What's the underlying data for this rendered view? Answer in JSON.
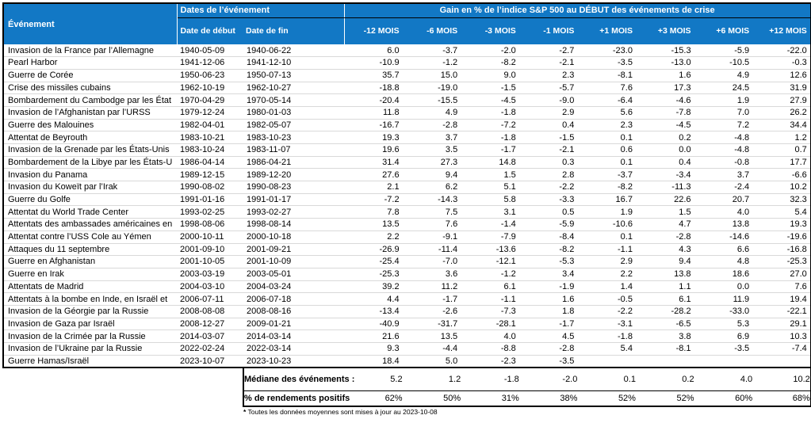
{
  "header": {
    "event_col": "Événement",
    "dates_group": "Dates de l’événement",
    "gain_group": "Gain en % de l’indice S&P 500 au DÉBUT des événements de crise",
    "start_col": "Date de début",
    "end_col": "Date de fin",
    "month_cols": [
      "-12 MOIS",
      "-6 MOIS",
      "-3 MOIS",
      "-1 MOIS",
      "+1 MOIS",
      "+3 MOIS",
      "+6 MOIS",
      "+12 MOIS"
    ]
  },
  "footer": {
    "median_label": "Médiane des événements :",
    "positive_label": "% de rendements positifs",
    "footnote_star": "*",
    "footnote_text": " Toutes les données moyennes sont mises à jour au 2023-10-08"
  },
  "colors": {
    "header_bg": "#1278c5",
    "header_text": "#ffffff",
    "row_divider": "#d9d9d9",
    "border": "#000000"
  },
  "chart_data": {
    "type": "table",
    "title": "Gain en % de l’indice S&P 500 au DÉBUT des événements de crise",
    "columns": [
      "Événement",
      "Date de début",
      "Date de fin",
      "-12 MOIS",
      "-6 MOIS",
      "-3 MOIS",
      "-1 MOIS",
      "+1 MOIS",
      "+3 MOIS",
      "+6 MOIS",
      "+12 MOIS"
    ],
    "rows": [
      {
        "event": "Invasion de la France par l’Allemagne",
        "start": "1940-05-09",
        "end": "1940-06-22",
        "values": [
          "6.0",
          "-3.7",
          "-2.0",
          "-2.7",
          "-23.0",
          "-15.3",
          "-5.9",
          "-22.0"
        ]
      },
      {
        "event": "Pearl Harbor",
        "start": "1941-12-06",
        "end": "1941-12-10",
        "values": [
          "-10.9",
          "-1.2",
          "-8.2",
          "-2.1",
          "-3.5",
          "-13.0",
          "-10.5",
          "-0.3"
        ]
      },
      {
        "event": "Guerre de Corée",
        "start": "1950-06-23",
        "end": "1950-07-13",
        "values": [
          "35.7",
          "15.0",
          "9.0",
          "2.3",
          "-8.1",
          "1.6",
          "4.9",
          "12.6"
        ]
      },
      {
        "event": "Crise des missiles cubains",
        "start": "1962-10-19",
        "end": "1962-10-27",
        "values": [
          "-18.8",
          "-19.0",
          "-1.5",
          "-5.7",
          "7.6",
          "17.3",
          "24.5",
          "31.9"
        ]
      },
      {
        "event": "Bombardement du Cambodge par les État",
        "start": "1970-04-29",
        "end": "1970-05-14",
        "values": [
          "-20.4",
          "-15.5",
          "-4.5",
          "-9.0",
          "-6.4",
          "-4.6",
          "1.9",
          "27.9"
        ]
      },
      {
        "event": "Invasion de l’Afghanistan par l’URSS",
        "start": "1979-12-24",
        "end": "1980-01-03",
        "values": [
          "11.8",
          "4.9",
          "-1.8",
          "2.9",
          "5.6",
          "-7.8",
          "7.0",
          "26.2"
        ]
      },
      {
        "event": "Guerre des Malouines",
        "start": "1982-04-01",
        "end": "1982-05-07",
        "values": [
          "-16.7",
          "-2.8",
          "-7.2",
          "0.4",
          "2.3",
          "-4.5",
          "7.2",
          "34.4"
        ]
      },
      {
        "event": "Attentat de Beyrouth",
        "start": "1983-10-21",
        "end": "1983-10-23",
        "values": [
          "19.3",
          "3.7",
          "-1.8",
          "-1.5",
          "0.1",
          "0.2",
          "-4.8",
          "1.2"
        ]
      },
      {
        "event": "Invasion de la Grenade par les États-Unis",
        "start": "1983-10-24",
        "end": "1983-11-07",
        "values": [
          "19.6",
          "3.5",
          "-1.7",
          "-2.1",
          "0.6",
          "0.0",
          "-4.8",
          "0.7"
        ]
      },
      {
        "event": "Bombardement de la Libye par les États-U",
        "start": "1986-04-14",
        "end": "1986-04-21",
        "values": [
          "31.4",
          "27.3",
          "14.8",
          "0.3",
          "0.1",
          "0.4",
          "-0.8",
          "17.7"
        ]
      },
      {
        "event": "Invasion du Panama",
        "start": "1989-12-15",
        "end": "1989-12-20",
        "values": [
          "27.6",
          "9.4",
          "1.5",
          "2.8",
          "-3.7",
          "-3.4",
          "3.7",
          "-6.6"
        ]
      },
      {
        "event": "Invasion du Koweït par l’Irak",
        "start": "1990-08-02",
        "end": "1990-08-23",
        "values": [
          "2.1",
          "6.2",
          "5.1",
          "-2.2",
          "-8.2",
          "-11.3",
          "-2.4",
          "10.2"
        ]
      },
      {
        "event": "Guerre du Golfe",
        "start": "1991-01-16",
        "end": "1991-01-17",
        "values": [
          "-7.2",
          "-14.3",
          "5.8",
          "-3.3",
          "16.7",
          "22.6",
          "20.7",
          "32.3"
        ]
      },
      {
        "event": "Attentat du World Trade Center",
        "start": "1993-02-25",
        "end": "1993-02-27",
        "values": [
          "7.8",
          "7.5",
          "3.1",
          "0.5",
          "1.9",
          "1.5",
          "4.0",
          "5.4"
        ]
      },
      {
        "event": "Attentats des ambassades américaines en",
        "start": "1998-08-06",
        "end": "1998-08-14",
        "values": [
          "13.5",
          "7.6",
          "-1.4",
          "-5.9",
          "-10.6",
          "4.7",
          "13.8",
          "19.3"
        ]
      },
      {
        "event": "Attentat contre l’USS Cole au Yémen",
        "start": "2000-10-11",
        "end": "2000-10-18",
        "values": [
          "2.2",
          "-9.1",
          "-7.9",
          "-8.4",
          "0.1",
          "-2.8",
          "-14.6",
          "-19.6"
        ]
      },
      {
        "event": "Attaques du 11 septembre",
        "start": "2001-09-10",
        "end": "2001-09-21",
        "values": [
          "-26.9",
          "-11.4",
          "-13.6",
          "-8.2",
          "-1.1",
          "4.3",
          "6.6",
          "-16.8"
        ]
      },
      {
        "event": "Guerre en Afghanistan",
        "start": "2001-10-05",
        "end": "2001-10-09",
        "values": [
          "-25.4",
          "-7.0",
          "-12.1",
          "-5.3",
          "2.9",
          "9.4",
          "4.8",
          "-25.3"
        ]
      },
      {
        "event": "Guerre en Irak",
        "start": "2003-03-19",
        "end": "2003-05-01",
        "values": [
          "-25.3",
          "3.6",
          "-1.2",
          "3.4",
          "2.2",
          "13.8",
          "18.6",
          "27.0"
        ]
      },
      {
        "event": "Attentats de Madrid",
        "start": "2004-03-10",
        "end": "2004-03-24",
        "values": [
          "39.2",
          "11.2",
          "6.1",
          "-1.9",
          "1.4",
          "1.1",
          "0.0",
          "7.6"
        ]
      },
      {
        "event": "Attentats à la bombe en Inde, en Israël et",
        "start": "2006-07-11",
        "end": "2006-07-18",
        "values": [
          "4.4",
          "-1.7",
          "-1.1",
          "1.6",
          "-0.5",
          "6.1",
          "11.9",
          "19.4"
        ]
      },
      {
        "event": "Invasion de la Géorgie par la Russie",
        "start": "2008-08-08",
        "end": "2008-08-16",
        "values": [
          "-13.4",
          "-2.6",
          "-7.3",
          "1.8",
          "-2.2",
          "-28.2",
          "-33.0",
          "-22.1"
        ]
      },
      {
        "event": "Invasion de Gaza par Israël",
        "start": "2008-12-27",
        "end": "2009-01-21",
        "values": [
          "-40.9",
          "-31.7",
          "-28.1",
          "-1.7",
          "-3.1",
          "-6.5",
          "5.3",
          "29.1"
        ]
      },
      {
        "event": "Invasion de la Crimée par la Russie",
        "start": "2014-03-07",
        "end": "2014-03-14",
        "values": [
          "21.6",
          "13.5",
          "4.0",
          "4.5",
          "-1.8",
          "3.8",
          "6.9",
          "10.3"
        ]
      },
      {
        "event": "Invasion de l’Ukraine par la Russie",
        "start": "2022-02-24",
        "end": "2022-03-14",
        "values": [
          "9.3",
          "-4.4",
          "-8.8",
          "-2.8",
          "5.4",
          "-8.1",
          "-3.5",
          "-7.4"
        ]
      },
      {
        "event": "Guerre Hamas/Israël",
        "start": "2023-10-07",
        "end": "2023-10-23",
        "values": [
          "18.4",
          "5.0",
          "-2.3",
          "-3.5"
        ]
      }
    ],
    "median_values": [
      "5.2",
      "1.2",
      "-1.8",
      "-2.0",
      "0.1",
      "0.2",
      "4.0",
      "10.2"
    ],
    "positive_values": [
      "62%",
      "50%",
      "31%",
      "38%",
      "52%",
      "52%",
      "60%",
      "68%"
    ]
  }
}
